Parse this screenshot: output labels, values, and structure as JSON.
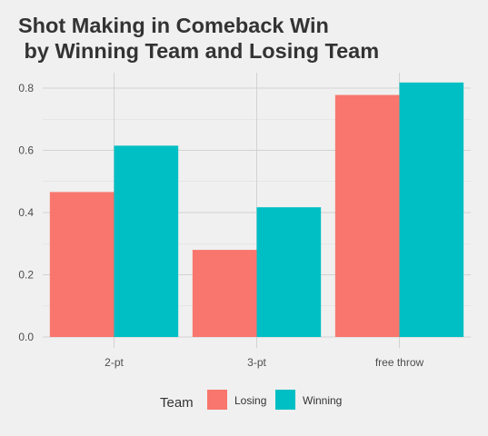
{
  "chart_data": {
    "type": "bar",
    "title": "Shot Making in Comeback Win\n by Winning Team and Losing Team",
    "xlabel": "",
    "ylabel": "",
    "categories": [
      "2-pt",
      "3-pt",
      "free throw"
    ],
    "series": [
      {
        "name": "Losing",
        "color": "#f8766d",
        "values": [
          0.466,
          0.28,
          0.778
        ]
      },
      {
        "name": "Winning",
        "color": "#00bfc4",
        "values": [
          0.615,
          0.417,
          0.818
        ]
      }
    ],
    "ylim": [
      0,
      0.86
    ],
    "yticks": [
      0.0,
      0.2,
      0.4,
      0.6,
      0.8
    ],
    "ytick_labels": [
      "0.0",
      "0.2",
      "0.4",
      "0.6",
      "0.8"
    ],
    "grid": true,
    "legend": {
      "title": "Team",
      "position": "bottom"
    }
  }
}
